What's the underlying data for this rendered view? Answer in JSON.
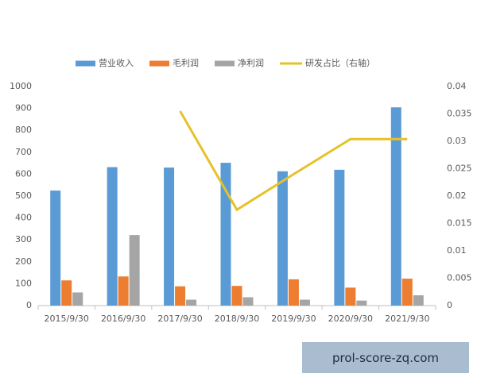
{
  "chart_data": {
    "type": "bar",
    "categories": [
      "2015/9/30",
      "2016/9/30",
      "2017/9/30",
      "2018/9/30",
      "2019/9/30",
      "2020/9/30",
      "2021/9/30"
    ],
    "series": [
      {
        "name": "营业收入",
        "color": "#5b9bd5",
        "values": [
          525,
          632,
          630,
          652,
          613,
          620,
          905
        ]
      },
      {
        "name": "毛利润",
        "color": "#ed7d31",
        "values": [
          115,
          133,
          88,
          90,
          120,
          82,
          123
        ]
      },
      {
        "name": "净利润",
        "color": "#a5a5a5",
        "values": [
          60,
          322,
          27,
          38,
          27,
          23,
          47
        ]
      },
      {
        "name": "研发占比（右轴）",
        "color": "#e6c229",
        "type": "line",
        "axis": "y2",
        "values": [
          null,
          null,
          0.0355,
          0.0175,
          0.024,
          0.0304,
          0.0304
        ]
      }
    ],
    "ylim": [
      0,
      1000
    ],
    "yticks": [
      0,
      100,
      200,
      300,
      400,
      500,
      600,
      700,
      800,
      900,
      1000
    ],
    "y2lim": [
      0,
      0.04
    ],
    "y2ticks": [
      0,
      0.005,
      0.01,
      0.015,
      0.02,
      0.025,
      0.03,
      0.035,
      0.04
    ],
    "grid": false,
    "legend": "top"
  },
  "watermark": "prol-score-zq.com"
}
